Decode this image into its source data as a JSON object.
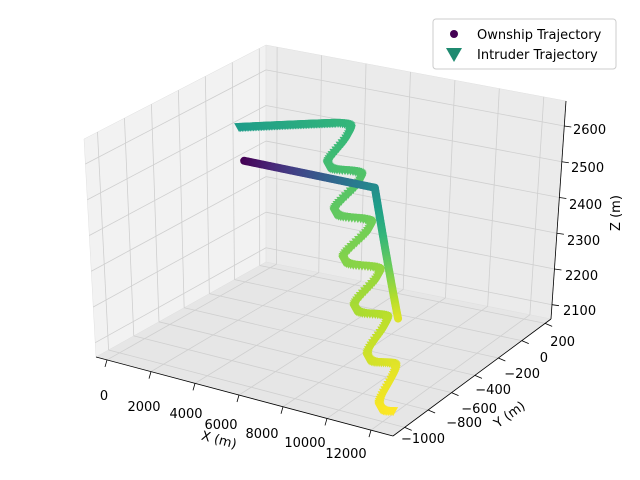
{
  "chart_data": {
    "type": "scatter",
    "dimensions": 3,
    "xlabel": "X (m)",
    "ylabel": "Y (m)",
    "zlabel": "Z (m)",
    "xlim": [
      -500,
      13000
    ],
    "ylim": [
      -1100,
      250
    ],
    "zlim": [
      2060,
      2670
    ],
    "x_ticks": [
      "0",
      "2000",
      "4000",
      "6000",
      "8000",
      "10000",
      "12000"
    ],
    "y_ticks": [
      "−1000",
      "−800",
      "−600",
      "−400",
      "−200",
      "0",
      "200"
    ],
    "z_ticks": [
      "2100",
      "2200",
      "2300",
      "2400",
      "2500",
      "2600"
    ],
    "grid": true,
    "legend_position": "top-right",
    "colormap": "viridis",
    "series": [
      {
        "name": "Ownship Trajectory",
        "marker": "circle",
        "legend_color": "#440154",
        "segments": [
          {
            "from": [
              0,
              0,
              2400
            ],
            "to": [
              6000,
              0,
              2400
            ]
          },
          {
            "from": [
              6000,
              0,
              2400
            ],
            "to": [
              10000,
              -500,
              2200
            ]
          }
        ]
      },
      {
        "name": "Intruder Trajectory",
        "marker": "triangle-down",
        "legend_color": "#1f8a70",
        "segments": [
          {
            "from": [
              1000,
              -200,
              2550
            ],
            "to": [
              6000,
              -300,
              2650
            ]
          },
          {
            "from": [
              6000,
              -300,
              2650
            ],
            "to": [
              12500,
              -1000,
              2100
            ],
            "oscillating": true
          }
        ]
      }
    ]
  },
  "legend": {
    "ownship_label": "Ownship Trajectory",
    "intruder_label": "Intruder Trajectory"
  }
}
